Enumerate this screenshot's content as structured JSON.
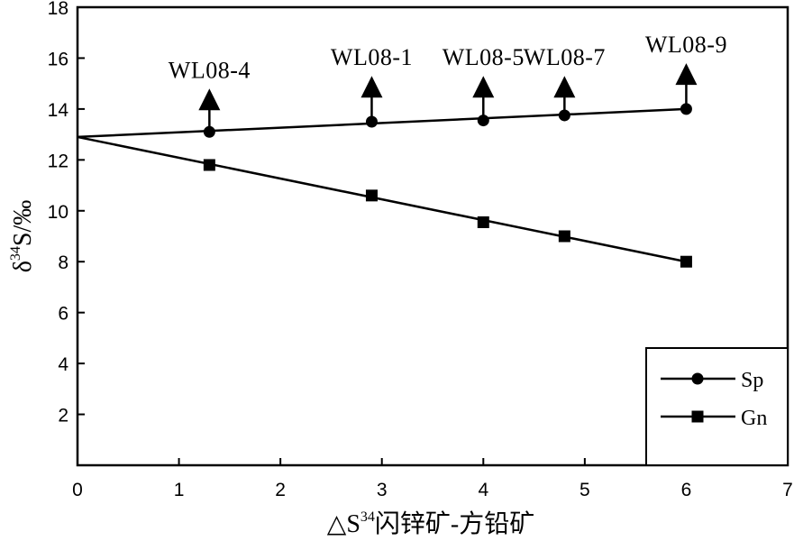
{
  "chart_data": {
    "type": "line",
    "title": "",
    "xlabel": {
      "prefix": "△S",
      "superscript": "34",
      "suffix": "闪锌矿-方铅矿"
    },
    "ylabel": {
      "prefix": "δ",
      "superscript": "34",
      "suffix": "S/‰"
    },
    "xlim": [
      0,
      7
    ],
    "ylim": [
      0,
      18
    ],
    "x_ticks": [
      0,
      1,
      2,
      3,
      4,
      5,
      6,
      7
    ],
    "y_ticks": [
      2,
      4,
      6,
      8,
      10,
      12,
      14,
      16,
      18
    ],
    "grid": false,
    "legend_position": "bottom-right",
    "series": [
      {
        "name": "Sp",
        "marker": "circle",
        "fit_line": {
          "from": [
            0,
            12.9
          ],
          "to": [
            6,
            14.0
          ]
        },
        "points": [
          {
            "x": 1.3,
            "y": 13.1
          },
          {
            "x": 2.9,
            "y": 13.5
          },
          {
            "x": 4.0,
            "y": 13.55
          },
          {
            "x": 4.8,
            "y": 13.75
          },
          {
            "x": 6.0,
            "y": 14.0
          }
        ]
      },
      {
        "name": "Gn",
        "marker": "square",
        "fit_line": {
          "from": [
            0,
            12.9
          ],
          "to": [
            6,
            8.0
          ]
        },
        "points": [
          {
            "x": 1.3,
            "y": 11.8
          },
          {
            "x": 2.9,
            "y": 10.6
          },
          {
            "x": 4.0,
            "y": 9.55
          },
          {
            "x": 4.8,
            "y": 9.0
          },
          {
            "x": 6.0,
            "y": 8.0
          }
        ]
      }
    ],
    "annotations": [
      {
        "text": "WL08-4",
        "x": 1.3,
        "arrow_tip_y": 14.8,
        "arrow_base_y": 13.2
      },
      {
        "text": "WL08-1",
        "x": 2.9,
        "arrow_tip_y": 15.3,
        "arrow_base_y": 13.6
      },
      {
        "text": "WL08-5",
        "x": 4.0,
        "arrow_tip_y": 15.3,
        "arrow_base_y": 13.65
      },
      {
        "text": "WL08-7",
        "x": 4.8,
        "arrow_tip_y": 15.3,
        "arrow_base_y": 13.85
      },
      {
        "text": "WL08-9",
        "x": 6.0,
        "arrow_tip_y": 15.8,
        "arrow_base_y": 14.1
      }
    ]
  }
}
